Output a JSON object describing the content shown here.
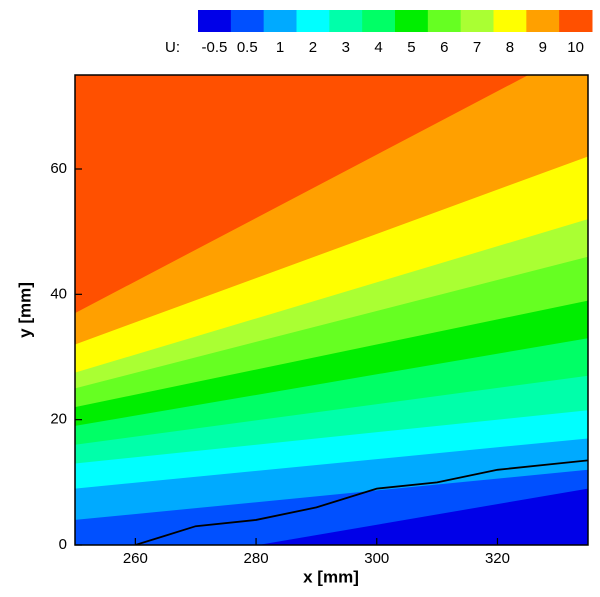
{
  "chart_data": {
    "type": "contour",
    "xlabel": "x [mm]",
    "ylabel": "y [mm]",
    "colorbar_label": "U:",
    "levels": [
      -0.5,
      0.5,
      1,
      2,
      3,
      4,
      5,
      6,
      7,
      8,
      9,
      10
    ],
    "colors": [
      "#0000e8",
      "#0050ff",
      "#00aaff",
      "#00ffff",
      "#00ffaa",
      "#00ff66",
      "#00ee00",
      "#66ff22",
      "#aaff33",
      "#ffff00",
      "#ffa000",
      "#ff5000"
    ],
    "level_lines": [
      null,
      [
        -5,
        9
      ],
      [
        4,
        12
      ],
      [
        9,
        17
      ],
      [
        13,
        21.5
      ],
      [
        16,
        27
      ],
      [
        19,
        33
      ],
      [
        22,
        39
      ],
      [
        25,
        46
      ],
      [
        27.5,
        52
      ],
      [
        32,
        62
      ],
      [
        37,
        80
      ]
    ],
    "line": {
      "color": "#000000",
      "x": [
        260,
        265,
        270,
        280,
        290,
        300,
        310,
        320,
        330,
        335
      ],
      "y": [
        0,
        1.5,
        3,
        4,
        6,
        9,
        10,
        12,
        13,
        13.5
      ]
    },
    "xlim": [
      250,
      335
    ],
    "ylim": [
      0,
      75
    ],
    "xticks": [
      260,
      280,
      300,
      320
    ],
    "yticks": [
      0,
      20,
      40,
      60
    ]
  }
}
